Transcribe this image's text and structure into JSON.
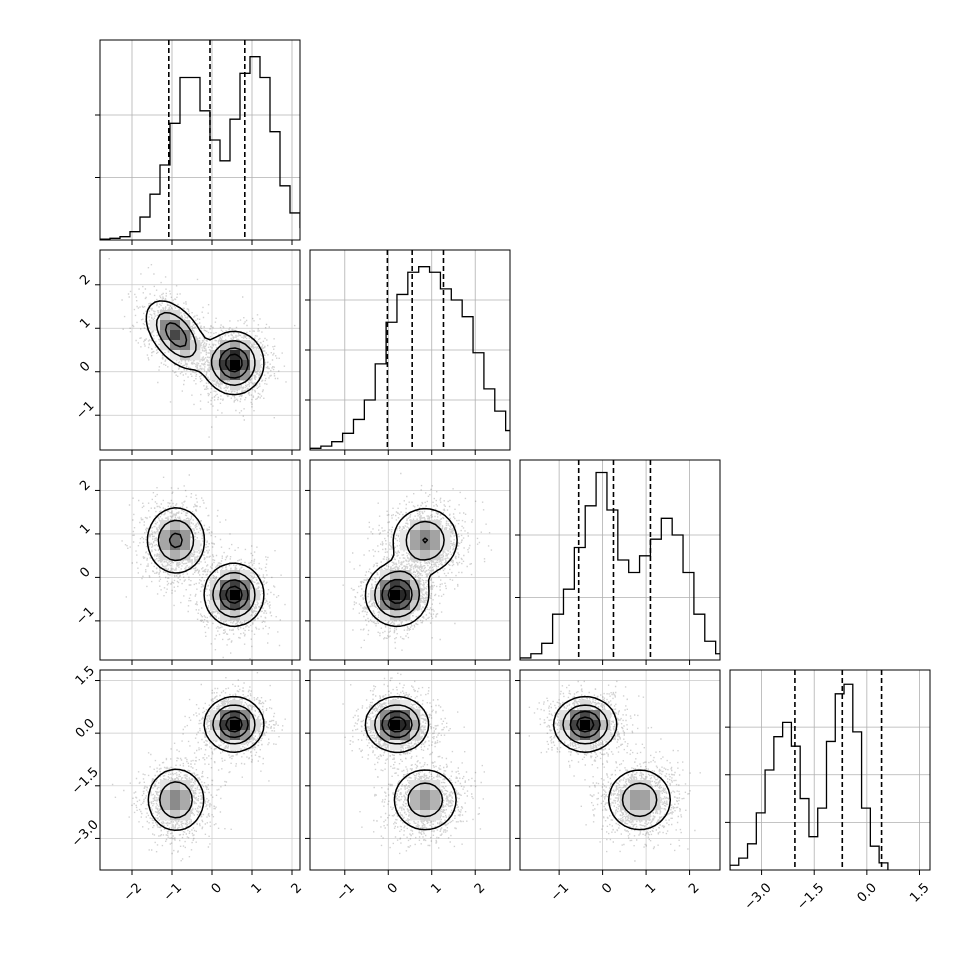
{
  "chart_data": {
    "type": "corner",
    "title": "",
    "grid": true,
    "variables": [
      {
        "name": "",
        "range": [
          -2.8,
          2.2
        ],
        "ticks": [
          -2,
          -1,
          0,
          1,
          2
        ],
        "tick_labels": [
          "−2",
          "−1",
          "0",
          "1",
          "2"
        ],
        "quantiles": [
          -1.08,
          -0.05,
          0.82
        ]
      },
      {
        "name": "",
        "range": [
          -1.8,
          2.8
        ],
        "ticks": [
          -1,
          0,
          1,
          2
        ],
        "tick_labels": [
          "−1",
          "0",
          "1",
          "2"
        ],
        "quantiles": [
          -0.02,
          0.55,
          1.27
        ]
      },
      {
        "name": "",
        "range": [
          -1.9,
          2.7
        ],
        "ticks": [
          -1,
          0,
          1,
          2
        ],
        "tick_labels": [
          "−1",
          "0",
          "1",
          "2"
        ],
        "quantiles": [
          -0.55,
          0.25,
          1.1
        ]
      },
      {
        "name": "",
        "range": [
          -3.9,
          1.8
        ],
        "ticks": [
          -3.0,
          -1.5,
          0.0,
          1.5
        ],
        "tick_labels": [
          "−3.0",
          "−1.5",
          "0.0",
          "1.5"
        ],
        "quantiles": [
          -2.05,
          -0.7,
          0.42
        ]
      }
    ],
    "histograms": [
      {
        "variable": 0,
        "bin_edges_start": -2.8,
        "bin_width": 0.25,
        "counts": [
          0.2,
          0.4,
          0.8,
          2.0,
          5.5,
          11.0,
          18.0,
          28.0,
          39.0,
          39.0,
          31.0,
          24.0,
          19.0,
          29.0,
          40.0,
          44.0,
          39.0,
          26.0,
          13.0,
          6.5,
          3.0,
          1.0,
          0.4,
          0.1
        ],
        "ylim": [
          0,
          48
        ],
        "yticks": [
          0,
          15,
          30
        ]
      },
      {
        "variable": 1,
        "bin_edges_start": -1.8,
        "bin_width": 0.25,
        "counts": [
          0.3,
          0.7,
          1.5,
          3.0,
          5.5,
          9.0,
          15.5,
          23.0,
          28.0,
          32.0,
          33.0,
          32.0,
          29.0,
          27.0,
          24.0,
          17.5,
          11.0,
          7.0,
          3.5,
          1.5,
          0.8,
          0.3
        ],
        "ylim": [
          0,
          36
        ],
        "yticks": [
          0,
          9,
          18,
          27
        ]
      },
      {
        "variable": 2,
        "bin_edges_start": -1.9,
        "bin_width": 0.25,
        "counts": [
          0.5,
          1.5,
          4.0,
          11.0,
          17.0,
          27.0,
          37.0,
          45.0,
          36.0,
          24.0,
          21.0,
          25.0,
          29.0,
          34.0,
          30.0,
          21.0,
          11.0,
          4.5,
          1.5,
          0.5
        ],
        "ylim": [
          0,
          48
        ],
        "yticks": [
          0,
          15,
          30
        ]
      },
      {
        "variable": 3,
        "bin_edges_start": -3.9,
        "bin_width": 0.25,
        "counts": [
          1.0,
          2.5,
          5.5,
          12.0,
          21.0,
          28.0,
          31.0,
          26.0,
          15.0,
          7.0,
          13.0,
          27.0,
          37.0,
          39.0,
          29.0,
          13.0,
          5.0,
          1.5
        ],
        "ylim": [
          0,
          42
        ],
        "yticks": [
          0,
          10,
          20,
          30
        ]
      }
    ],
    "components": [
      {
        "weight": 0.45,
        "mean": [
          -0.9,
          0.85,
          0.85,
          -1.9
        ],
        "sd": [
          0.38,
          0.4,
          0.4,
          0.48
        ]
      },
      {
        "weight": 0.55,
        "mean": [
          0.55,
          0.2,
          -0.4,
          0.25
        ],
        "sd": [
          0.36,
          0.35,
          0.35,
          0.38
        ]
      }
    ],
    "pair_correlation": {
      "0-1": -0.5
    }
  }
}
